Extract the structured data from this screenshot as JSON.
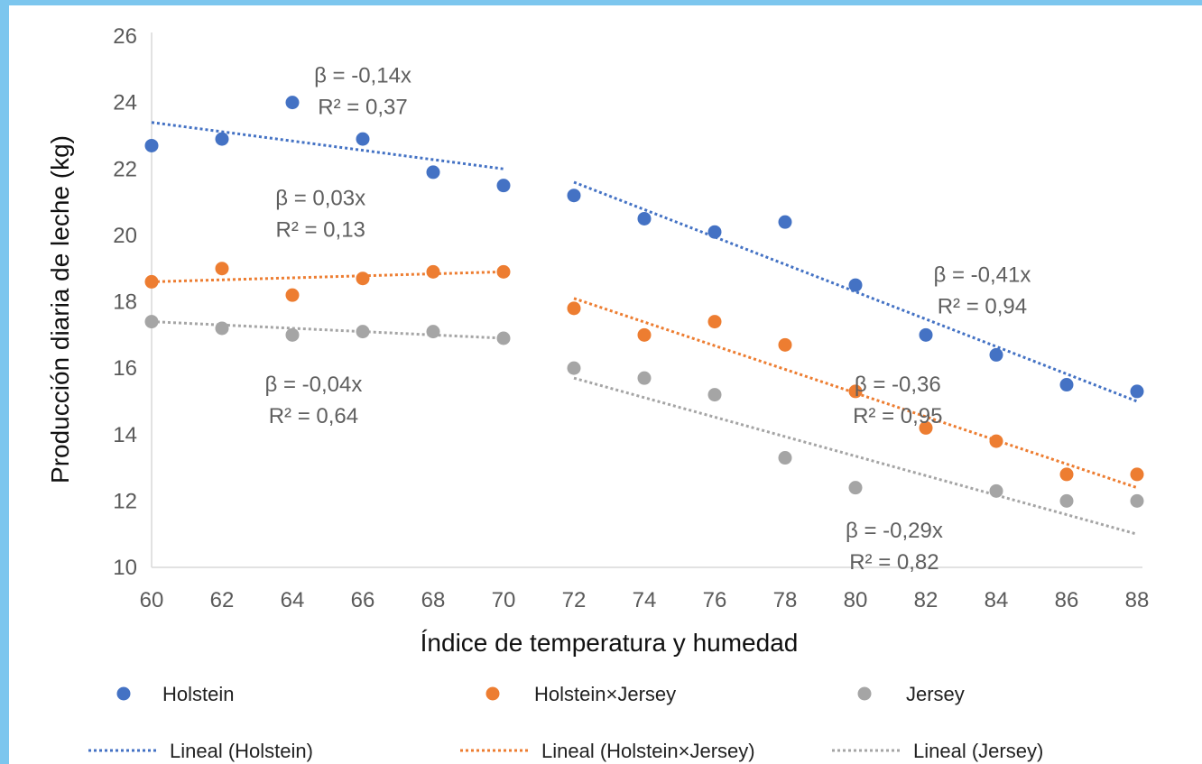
{
  "chart_data": {
    "type": "scatter",
    "xlabel": "Índice de temperatura y humedad",
    "ylabel": "Producción diaria de leche (kg)",
    "xlim": [
      60,
      88
    ],
    "ylim": [
      10,
      26
    ],
    "x_ticks": [
      "60",
      "62",
      "64",
      "66",
      "68",
      "70",
      "72",
      "74",
      "76",
      "78",
      "80",
      "82",
      "84",
      "86",
      "88"
    ],
    "y_ticks": [
      "10",
      "12",
      "14",
      "16",
      "18",
      "20",
      "22",
      "24",
      "26"
    ],
    "grid": false,
    "legend_position": "bottom",
    "series": [
      {
        "name": "Holstein",
        "color": "#4472c4",
        "x": [
          60,
          62,
          64,
          66,
          68,
          70,
          72,
          74,
          76,
          78,
          80,
          82,
          84,
          86,
          88
        ],
        "y": [
          22.7,
          22.9,
          24.0,
          22.9,
          21.9,
          21.5,
          21.2,
          20.5,
          20.1,
          20.4,
          18.5,
          17.0,
          16.4,
          15.5,
          15.3
        ]
      },
      {
        "name": "Holstein×Jersey",
        "color": "#ed7d31",
        "x": [
          60,
          62,
          64,
          66,
          68,
          70,
          72,
          74,
          76,
          78,
          80,
          82,
          84,
          86,
          88
        ],
        "y": [
          18.6,
          19.0,
          18.2,
          18.7,
          18.9,
          18.9,
          17.8,
          17.0,
          17.4,
          16.7,
          15.3,
          14.2,
          13.8,
          12.8,
          12.8
        ]
      },
      {
        "name": "Jersey",
        "color": "#a5a5a5",
        "x": [
          60,
          62,
          64,
          66,
          68,
          70,
          72,
          74,
          76,
          78,
          80,
          82,
          84,
          86,
          88
        ],
        "y": [
          17.4,
          17.2,
          17.0,
          17.1,
          17.1,
          16.9,
          16.0,
          15.7,
          15.2,
          13.3,
          12.4,
          null,
          12.3,
          12.0,
          12.0
        ]
      }
    ],
    "trendlines": [
      {
        "name": "Lineal (Holstein)",
        "color": "#4472c4",
        "segments": [
          {
            "x": [
              60,
              70
            ],
            "y": [
              23.4,
              22.0
            ]
          },
          {
            "x": [
              72,
              88
            ],
            "y": [
              21.6,
              15.0
            ]
          }
        ]
      },
      {
        "name": "Lineal (Holstein×Jersey)",
        "color": "#ed7d31",
        "segments": [
          {
            "x": [
              60,
              70
            ],
            "y": [
              18.6,
              18.9
            ]
          },
          {
            "x": [
              72,
              88
            ],
            "y": [
              18.1,
              12.4
            ]
          }
        ]
      },
      {
        "name": "Lineal (Jersey)",
        "color": "#a5a5a5",
        "segments": [
          {
            "x": [
              60,
              70
            ],
            "y": [
              17.4,
              16.9
            ]
          },
          {
            "x": [
              72,
              88
            ],
            "y": [
              15.7,
              11.0
            ]
          }
        ]
      }
    ],
    "annotations": [
      {
        "line1": "β = -0,14x",
        "line2": "R² = 0,37",
        "x": 66.0,
        "y": 24.6
      },
      {
        "line1": "β = 0,03x",
        "line2": "R² = 0,13",
        "x": 64.8,
        "y": 20.9
      },
      {
        "line1": "β = -0,04x",
        "line2": "R² = 0,64",
        "x": 64.6,
        "y": 15.3
      },
      {
        "line1": "β  = -0,41x",
        "line2": "R² = 0,94",
        "x": 83.6,
        "y": 18.6
      },
      {
        "line1": "β  = -0,36",
        "line2": "R² = 0,95",
        "x": 81.2,
        "y": 15.3
      },
      {
        "line1": "β  = -0,29x",
        "line2": "R² = 0,82",
        "x": 81.1,
        "y": 10.9
      }
    ]
  },
  "legend": {
    "markers": [
      "Holstein",
      "Holstein×Jersey",
      "Jersey"
    ],
    "lines": [
      "Lineal (Holstein)",
      "Lineal (Holstein×Jersey)",
      "Lineal (Jersey)"
    ]
  }
}
